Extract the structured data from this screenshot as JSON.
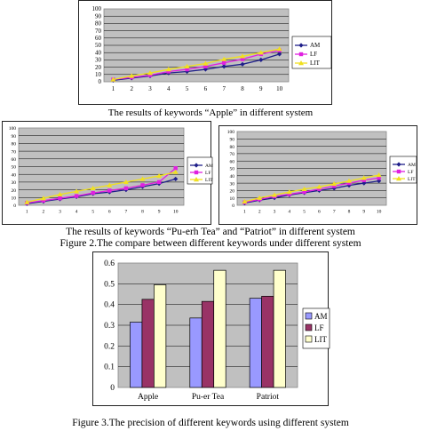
{
  "captions": {
    "apple": "The results of keywords “Apple” in different system",
    "puer_patriot": "The results of keywords “Pu-erh Tea” and “Patriot” in different system",
    "figure2": "Figure 2.The compare between different keywords under different system",
    "figure3": "Figure 3.The precision of different keywords using different system"
  },
  "colors": {
    "AM": "#1f1f8a",
    "LF": "#e020e0",
    "LIT": "#f0e020",
    "plot_bg": "#c0c0c0",
    "bar_AM": "#9999ff",
    "bar_LF": "#993366",
    "bar_LIT": "#ffffcc"
  },
  "chart_data": [
    {
      "type": "line",
      "title": "",
      "x": [
        1,
        2,
        3,
        4,
        5,
        6,
        7,
        8,
        9,
        10
      ],
      "ylim": [
        0,
        100
      ],
      "yticks": [
        "0",
        "10",
        "20",
        "30",
        "40",
        "50",
        "60",
        "70",
        "80",
        "90",
        "100"
      ],
      "legend_position": "right",
      "series": [
        {
          "name": "AM",
          "values": [
            2,
            5,
            8,
            12,
            14,
            17,
            21,
            24,
            30,
            38
          ]
        },
        {
          "name": "LF",
          "values": [
            3,
            6,
            9,
            14,
            17,
            21,
            26,
            31,
            38,
            43
          ]
        },
        {
          "name": "LIT",
          "values": [
            3,
            8,
            12,
            17,
            21,
            25,
            31,
            35,
            40,
            45
          ]
        }
      ]
    },
    {
      "type": "line",
      "title": "",
      "x": [
        1,
        2,
        3,
        4,
        5,
        6,
        7,
        8,
        9,
        10
      ],
      "ylim": [
        0,
        100
      ],
      "yticks": [
        "0",
        "10",
        "20",
        "30",
        "40",
        "50",
        "60",
        "70",
        "80",
        "90",
        "100"
      ],
      "legend_position": "right",
      "series": [
        {
          "name": "AM",
          "values": [
            2,
            5,
            8,
            11,
            15,
            17,
            20,
            24,
            28,
            34
          ]
        },
        {
          "name": "LF",
          "values": [
            3,
            6,
            9,
            12,
            16,
            19,
            22,
            26,
            30,
            48
          ]
        },
        {
          "name": "LIT",
          "values": [
            4,
            9,
            14,
            18,
            22,
            26,
            30,
            34,
            38,
            43
          ]
        }
      ]
    },
    {
      "type": "line",
      "title": "",
      "x": [
        1,
        2,
        3,
        4,
        5,
        6,
        7,
        8,
        9,
        10
      ],
      "ylim": [
        0,
        100
      ],
      "yticks": [
        "0",
        "10",
        "20",
        "30",
        "40",
        "50",
        "60",
        "70",
        "80",
        "90",
        "100"
      ],
      "legend_position": "right",
      "series": [
        {
          "name": "AM",
          "values": [
            3,
            7,
            10,
            14,
            17,
            20,
            23,
            27,
            30,
            33
          ]
        },
        {
          "name": "LF",
          "values": [
            4,
            8,
            12,
            15,
            18,
            22,
            26,
            30,
            34,
            37
          ]
        },
        {
          "name": "LIT",
          "values": [
            5,
            10,
            14,
            18,
            22,
            25,
            29,
            33,
            37,
            41
          ]
        }
      ]
    },
    {
      "type": "bar",
      "title": "",
      "categories": [
        "Apple",
        "Pu-er Tea",
        "Patriot"
      ],
      "ylim": [
        0,
        0.6
      ],
      "yticks": [
        "0",
        "0.1",
        "0.2",
        "0.3",
        "0.4",
        "0.5",
        "0.6"
      ],
      "legend_position": "right",
      "series": [
        {
          "name": "AM",
          "values": [
            0.315,
            0.335,
            0.43
          ]
        },
        {
          "name": "LF",
          "values": [
            0.425,
            0.415,
            0.44
          ]
        },
        {
          "name": "LIT",
          "values": [
            0.495,
            0.565,
            0.565
          ]
        }
      ]
    }
  ]
}
